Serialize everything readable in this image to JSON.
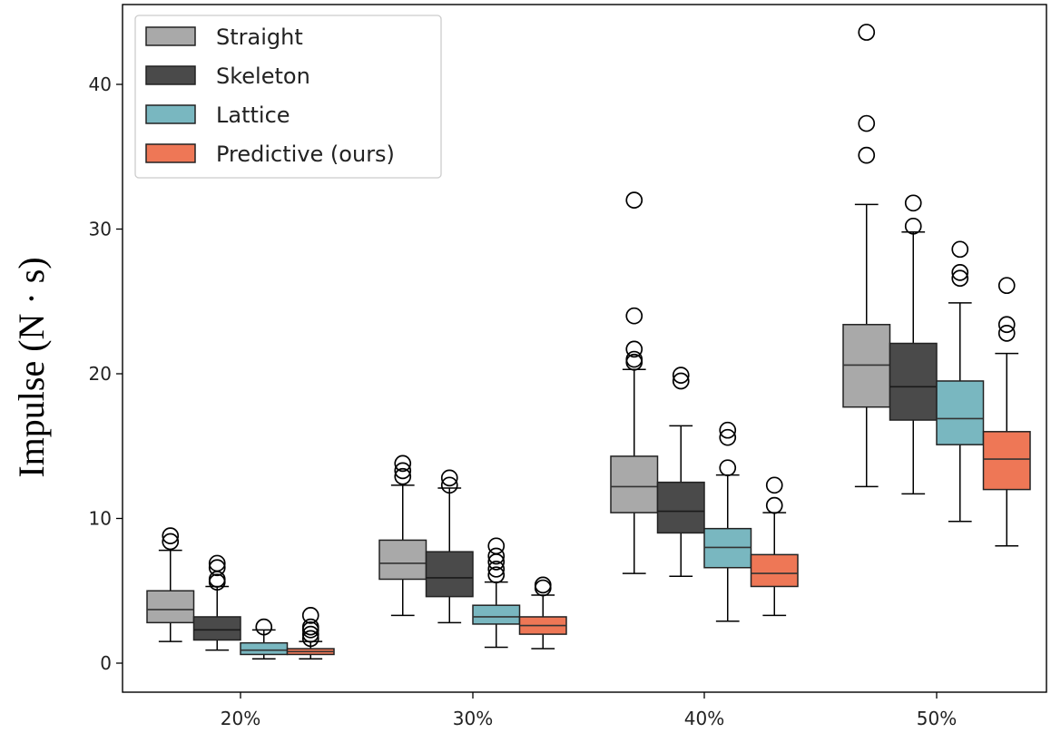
{
  "chart_data": {
    "type": "box",
    "title": "",
    "xlabel": "",
    "ylabel": "Impulse (N · s)",
    "ylim": [
      -2,
      45
    ],
    "yticks": [
      0,
      10,
      20,
      30,
      40
    ],
    "categories": [
      "20%",
      "30%",
      "40%",
      "50%"
    ],
    "legend": {
      "placement": "top-left"
    },
    "series": [
      {
        "name": "Straight",
        "color": "#a9a9a9",
        "boxes": [
          {
            "whislo": 1.5,
            "q1": 2.8,
            "med": 3.7,
            "q3": 5.0,
            "whishi": 7.8,
            "fliers": [
              8.4,
              8.8
            ]
          },
          {
            "whislo": 3.3,
            "q1": 5.8,
            "med": 6.9,
            "q3": 8.5,
            "whishi": 12.3,
            "fliers": [
              12.9,
              13.3,
              13.8
            ]
          },
          {
            "whislo": 6.2,
            "q1": 10.4,
            "med": 12.2,
            "q3": 14.3,
            "whishi": 20.3,
            "fliers": [
              20.8,
              21.0,
              21.7,
              24.0,
              32.0
            ]
          },
          {
            "whislo": 12.2,
            "q1": 17.7,
            "med": 20.6,
            "q3": 23.4,
            "whishi": 31.7,
            "fliers": [
              35.1,
              37.3,
              43.6
            ]
          }
        ]
      },
      {
        "name": "Skeleton",
        "color": "#4a4a4a",
        "boxes": [
          {
            "whislo": 0.9,
            "q1": 1.6,
            "med": 2.3,
            "q3": 3.2,
            "whishi": 5.3,
            "fliers": [
              5.6,
              5.8,
              6.6,
              6.9
            ]
          },
          {
            "whislo": 2.8,
            "q1": 4.6,
            "med": 5.9,
            "q3": 7.7,
            "whishi": 12.1,
            "fliers": [
              12.3,
              12.8
            ]
          },
          {
            "whislo": 6.0,
            "q1": 9.0,
            "med": 10.5,
            "q3": 12.5,
            "whishi": 16.4,
            "fliers": [
              19.5,
              19.9
            ]
          },
          {
            "whislo": 11.7,
            "q1": 16.8,
            "med": 19.1,
            "q3": 22.1,
            "whishi": 29.8,
            "fliers": [
              30.2,
              31.8
            ]
          }
        ]
      },
      {
        "name": "Lattice",
        "color": "#79b7c0",
        "boxes": [
          {
            "whislo": 0.3,
            "q1": 0.6,
            "med": 0.9,
            "q3": 1.4,
            "whishi": 2.3,
            "fliers": [
              2.5
            ]
          },
          {
            "whislo": 1.1,
            "q1": 2.7,
            "med": 3.2,
            "q3": 4.0,
            "whishi": 5.6,
            "fliers": [
              6.1,
              6.5,
              7.0,
              7.4,
              8.1
            ]
          },
          {
            "whislo": 2.9,
            "q1": 6.6,
            "med": 8.0,
            "q3": 9.3,
            "whishi": 13.0,
            "fliers": [
              13.5,
              15.6,
              16.1
            ]
          },
          {
            "whislo": 9.8,
            "q1": 15.1,
            "med": 16.9,
            "q3": 19.5,
            "whishi": 24.9,
            "fliers": [
              26.6,
              27.0,
              28.6
            ]
          }
        ]
      },
      {
        "name": "Predictive (ours)",
        "color": "#ee7756",
        "boxes": [
          {
            "whislo": 0.3,
            "q1": 0.6,
            "med": 0.8,
            "q3": 1.0,
            "whishi": 1.5,
            "fliers": [
              1.7,
              2.0,
              2.3,
              2.5,
              3.3
            ]
          },
          {
            "whislo": 1.0,
            "q1": 2.0,
            "med": 2.6,
            "q3": 3.2,
            "whishi": 4.7,
            "fliers": [
              5.2,
              5.4
            ]
          },
          {
            "whislo": 3.3,
            "q1": 5.3,
            "med": 6.2,
            "q3": 7.5,
            "whishi": 10.4,
            "fliers": [
              10.9,
              12.3
            ]
          },
          {
            "whislo": 8.1,
            "q1": 12.0,
            "med": 14.1,
            "q3": 16.0,
            "whishi": 21.4,
            "fliers": [
              22.8,
              23.4,
              26.1
            ]
          }
        ]
      }
    ]
  }
}
